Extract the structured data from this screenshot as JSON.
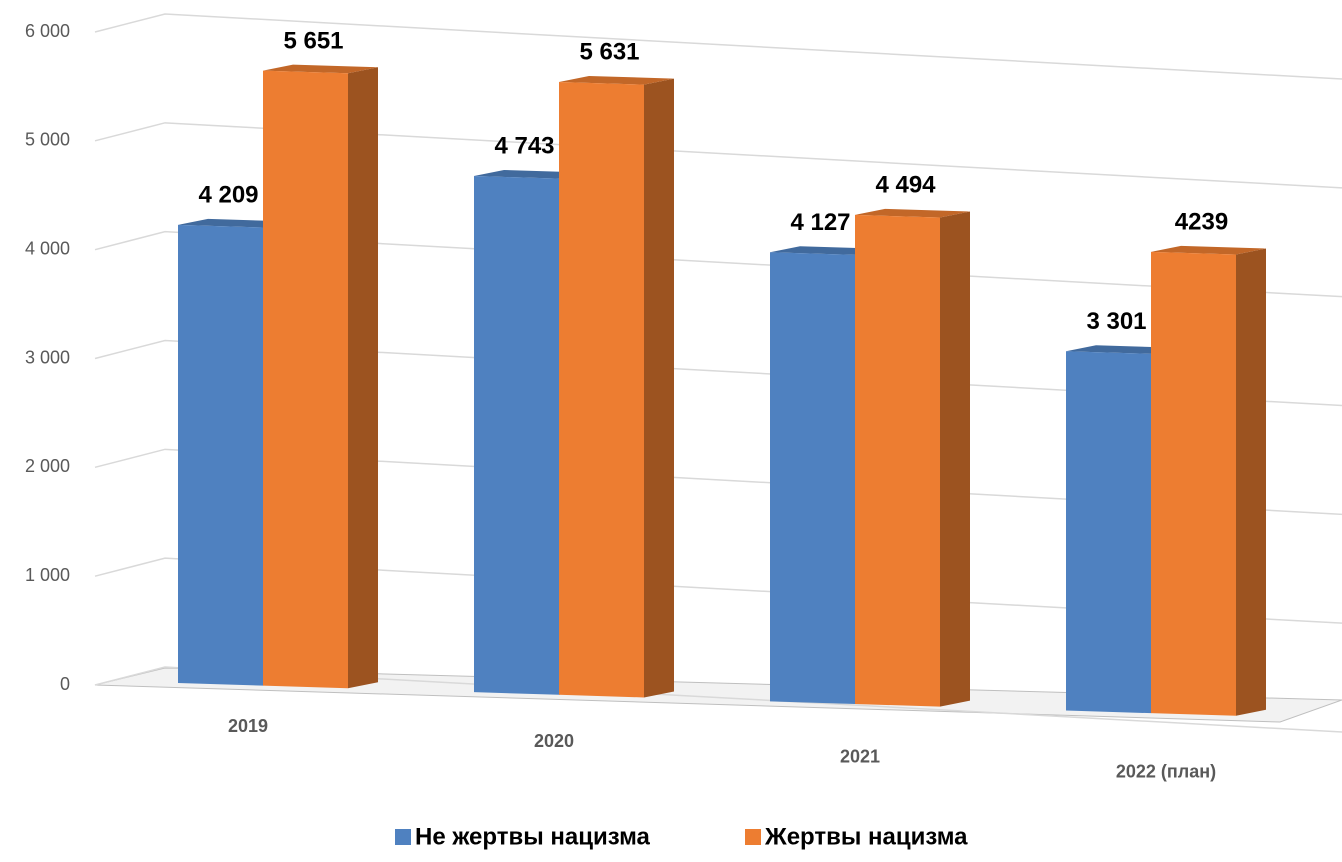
{
  "chart_data": {
    "type": "bar3d",
    "categories": [
      "2019",
      "2020",
      "2021",
      "2022 (план)"
    ],
    "series": [
      {
        "name": "Не жертвы нацизма",
        "color": "#4f81c0",
        "values": [
          4209,
          4743,
          4127,
          3301
        ],
        "value_labels": [
          "4 209",
          "4 743",
          "4 127",
          "3 301"
        ]
      },
      {
        "name": "Жертвы нацизма",
        "color": "#ed7d31",
        "values": [
          5651,
          5631,
          4494,
          4239
        ],
        "value_labels": [
          "5 651",
          "5 631",
          "4 494",
          "4239"
        ]
      }
    ],
    "ylim": [
      0,
      6000
    ],
    "yticks": [
      0,
      {
        "value": 1000,
        "label": "1 000"
      },
      {
        "value": 2000,
        "label": "2 000"
      },
      {
        "value": 3000,
        "label": "3 000"
      },
      {
        "value": 4000,
        "label": "4 000"
      },
      {
        "value": 5000,
        "label": "5 000"
      },
      {
        "value": 6000,
        "label": "6 000"
      }
    ],
    "grid": true,
    "legend": "bottom"
  }
}
